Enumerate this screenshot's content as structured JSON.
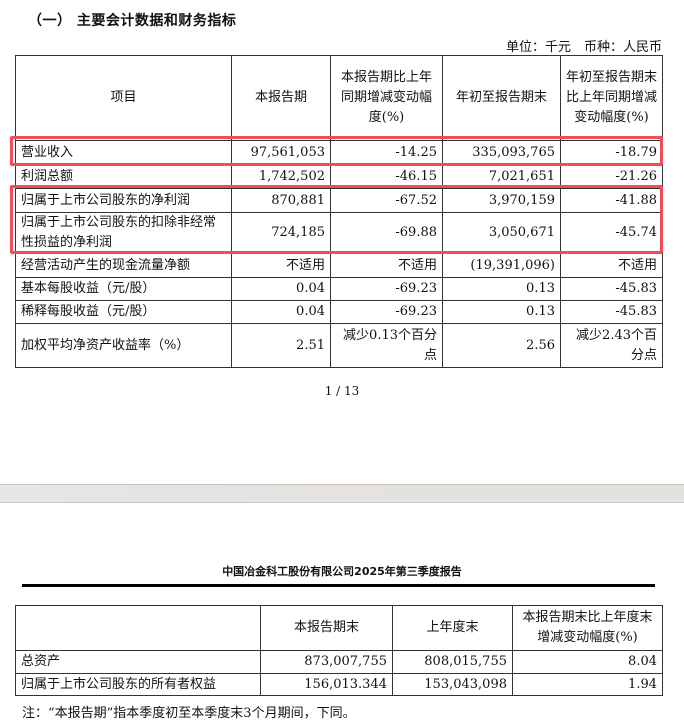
{
  "section_title": "（一） 主要会计数据和财务指标",
  "unit_line": "单位：千元　币种：人民币",
  "table1": {
    "headers": [
      "项目",
      "本报告期",
      "本报告期比上年同期增减变动幅度(%)",
      "年初至报告期末",
      "年初至报告期末比上年同期增减变动幅度(%)"
    ],
    "rows": [
      [
        "营业收入",
        "97,561,053",
        "-14.25",
        "335,093,765",
        "-18.79"
      ],
      [
        "利润总额",
        "1,742,502",
        "-46.15",
        "7,021,651",
        "-21.26"
      ],
      [
        "归属于上市公司股东的净利润",
        "870,881",
        "-67.52",
        "3,970,159",
        "-41.88"
      ],
      [
        "归属于上市公司股东的扣除非经常性损益的净利润",
        "724,185",
        "-69.88",
        "3,050,671",
        "-45.74"
      ],
      [
        "经营活动产生的现金流量净额",
        "不适用",
        "不适用",
        "(19,391,096)",
        "不适用"
      ],
      [
        "基本每股收益（元/股）",
        "0.04",
        "-69.23",
        "0.13",
        "-45.83"
      ],
      [
        "稀释每股收益（元/股）",
        "0.04",
        "-69.23",
        "0.13",
        "-45.83"
      ],
      [
        "加权平均净资产收益率（%）",
        "2.51",
        "减少0.13个百分点",
        "2.56",
        "减少2.43个百分点"
      ]
    ],
    "highlight_color": "#f24c55"
  },
  "page_number": "1 / 13",
  "report_header": "中国冶金科工股份有限公司2025年第三季度报告",
  "table2": {
    "headers": [
      "",
      "本报告期末",
      "上年度末",
      "本报告期末比上年度末增减变动幅度(%)"
    ],
    "rows": [
      [
        "总资产",
        "873,007,755",
        "808,015,755",
        "8.04"
      ],
      [
        "归属于上市公司股东的所有者权益",
        "156,013.344",
        "153,043,098",
        "1.94"
      ]
    ]
  },
  "note": "注：“本报告期”指本季度初至本季度末3个月期间，下同。"
}
